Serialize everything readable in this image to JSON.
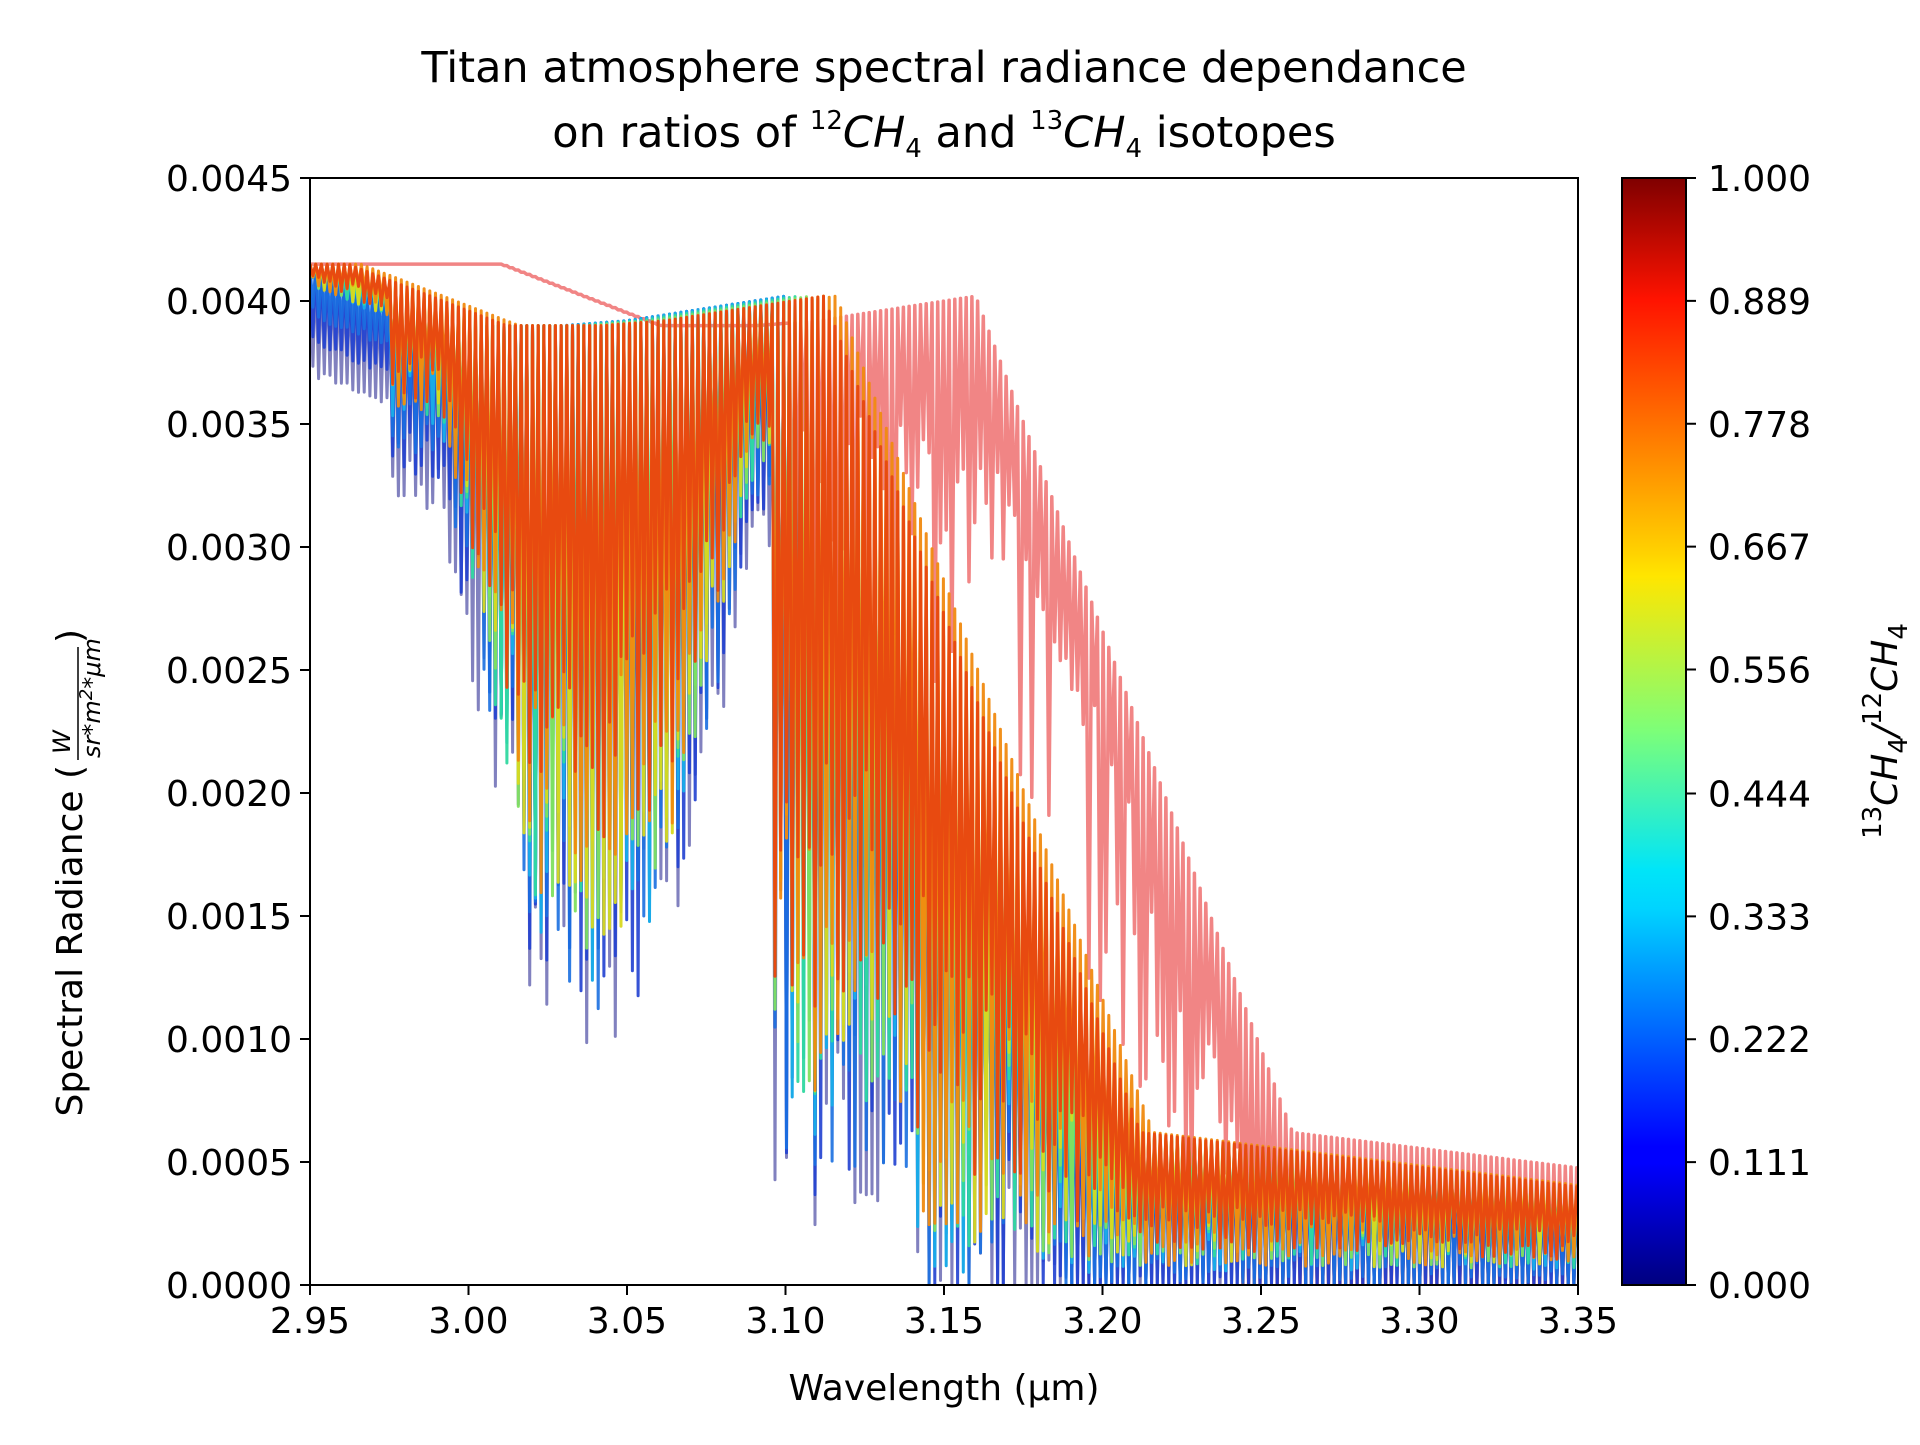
{
  "chart_data": {
    "type": "line",
    "title": {
      "line1": "Titan atmosphere spectral radiance dependance",
      "line2_pre": "on ratios of ",
      "iso1_mass": "12",
      "iso2_mass": "13",
      "molecule_base": "CH",
      "molecule_sub": "4",
      "line2_mid": " and ",
      "line2_post": " isotopes"
    },
    "xlabel": "Wavelength (μm)",
    "ylabel": {
      "text": "Spectral Radiance (",
      "numerator": "W",
      "denominator": "sr*m",
      "denominator_sup": "2",
      "denominator_post": "*μm",
      "close": ")"
    },
    "xlim": [
      2.95,
      3.35
    ],
    "ylim": [
      0.0,
      0.0045
    ],
    "x_ticks": [
      "2.95",
      "3.00",
      "3.05",
      "3.10",
      "3.15",
      "3.20",
      "3.25",
      "3.30",
      "3.35"
    ],
    "y_ticks": [
      "0.0000",
      "0.0005",
      "0.0010",
      "0.0015",
      "0.0020",
      "0.0025",
      "0.0030",
      "0.0035",
      "0.0040",
      "0.0045"
    ],
    "grid": false,
    "colorbar": {
      "colormap": "jet",
      "range": [
        0.0,
        1.0
      ],
      "ticks": [
        "0.000",
        "0.111",
        "0.222",
        "0.333",
        "0.444",
        "0.556",
        "0.667",
        "0.778",
        "0.889",
        "1.000"
      ],
      "label": {
        "iso_top": "13",
        "iso_bottom": "12",
        "molecule_base": "CH",
        "molecule_sub": "4",
        "slash": "/"
      }
    },
    "series": [
      {
        "ratio": 0.0,
        "color": "#1a1a8a",
        "opacity": 0.55,
        "kind": "low"
      },
      {
        "ratio": 0.111,
        "color": "#2040d0",
        "opacity": 0.9,
        "kind": "low"
      },
      {
        "ratio": 0.222,
        "color": "#1a6fe0",
        "opacity": 0.9,
        "kind": "low"
      },
      {
        "ratio": 0.333,
        "color": "#1aaae8",
        "opacity": 1.0,
        "kind": "low"
      },
      {
        "ratio": 0.444,
        "color": "#30d8a0",
        "opacity": 0.95,
        "kind": "mid"
      },
      {
        "ratio": 0.556,
        "color": "#80e060",
        "opacity": 0.95,
        "kind": "mid"
      },
      {
        "ratio": 0.667,
        "color": "#d8d820",
        "opacity": 0.95,
        "kind": "mid"
      },
      {
        "ratio": 0.778,
        "color": "#f08a10",
        "opacity": 0.95,
        "kind": "mid"
      },
      {
        "ratio": 0.889,
        "color": "#e84a10",
        "opacity": 1.0,
        "kind": "high"
      },
      {
        "ratio": 1.0,
        "color": "#f07878",
        "opacity": 0.9,
        "kind": "pure13"
      }
    ],
    "envelope_description_points": {
      "continuum_x": [
        2.95,
        2.98,
        3.0,
        3.03,
        3.05,
        3.08,
        3.1
      ],
      "continuum_y": [
        0.00415,
        0.004,
        0.0039,
        0.0039,
        0.00392,
        0.00398,
        0.00402
      ],
      "min_envelope_x": [
        2.99,
        3.0,
        3.02,
        3.04,
        3.06,
        3.08,
        3.09
      ],
      "min_envelope_y": [
        0.0035,
        0.0028,
        0.0014,
        0.0012,
        0.0015,
        0.0027,
        0.0033
      ]
    }
  }
}
